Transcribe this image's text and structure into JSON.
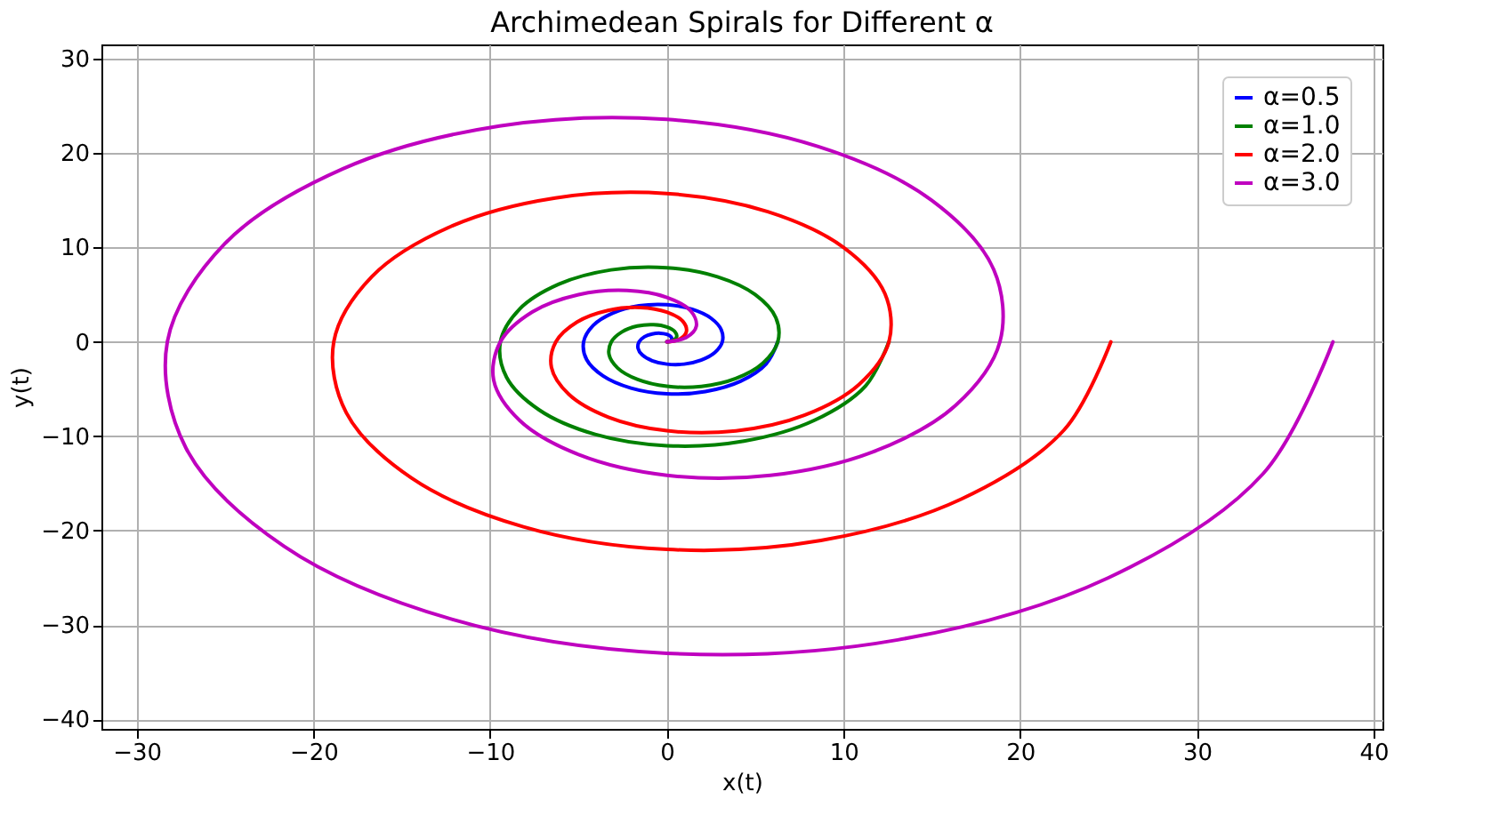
{
  "chart_data": {
    "type": "line",
    "title": "Archimedean Spirals for Different α",
    "xlabel": "x(t)",
    "ylabel": "y(t)",
    "xlim": [
      -32,
      40.5
    ],
    "ylim": [
      -41,
      31.5
    ],
    "xticks": [
      -30,
      -20,
      -10,
      0,
      10,
      20,
      30,
      40
    ],
    "yticks": [
      -40,
      -30,
      -20,
      -10,
      0,
      10,
      20,
      30
    ],
    "grid": true,
    "legend": "top right",
    "line_style": "solid",
    "marker": "none",
    "series": [
      {
        "name": "α=0.5",
        "color": "#0000ff",
        "x": [
          0,
          0.18,
          0.28,
          0.23,
          0,
          -0.38,
          -0.83,
          -1.27,
          -1.57,
          -1.63,
          -1.39,
          -0.83,
          0,
          0.98,
          1.94,
          2.72,
          3.14,
          3.08,
          2.5,
          1.43,
          0,
          -1.58,
          -3.05,
          -4.17,
          -4.71,
          -4.54,
          -3.61,
          -2.03,
          0,
          2.18,
          4.17,
          5.62,
          6.28
        ],
        "values": [
          0,
          0.08,
          0.28,
          0.54,
          0.79,
          0.91,
          0.83,
          0.53,
          0,
          -0.68,
          -1.39,
          -2.0,
          -2.36,
          -2.36,
          -1.94,
          -1.13,
          0,
          1.28,
          2.5,
          3.45,
          3.93,
          3.81,
          3.05,
          1.73,
          0,
          -1.88,
          -3.61,
          -4.9,
          -5.5,
          -5.26,
          -4.17,
          -2.33,
          0
        ]
      },
      {
        "name": "α=1.0",
        "color": "#008000",
        "x": [
          0,
          0.36,
          0.56,
          0.45,
          0,
          -0.75,
          -1.67,
          -2.54,
          -3.14,
          -3.27,
          -2.78,
          -1.65,
          0,
          1.95,
          3.89,
          5.44,
          6.28,
          6.17,
          5.0,
          2.86,
          0,
          -3.16,
          -6.11,
          -8.34,
          -9.42,
          -9.07,
          -7.22,
          -4.06,
          0,
          4.36,
          8.33,
          11.25,
          12.57
        ],
        "values": [
          0,
          0.15,
          0.56,
          1.09,
          1.57,
          1.81,
          1.67,
          1.05,
          0,
          -1.35,
          -2.78,
          -3.99,
          -4.71,
          -4.72,
          -3.89,
          -2.25,
          0,
          2.55,
          5.0,
          6.89,
          7.85,
          7.62,
          6.11,
          3.46,
          0,
          -3.76,
          -7.22,
          -9.8,
          -11.0,
          -10.52,
          -8.33,
          -4.66,
          0
        ]
      },
      {
        "name": "α=2.0",
        "color": "#ff0000",
        "x": [
          0,
          0.73,
          1.11,
          0.9,
          0,
          -1.5,
          -3.33,
          -5.08,
          -6.28,
          -6.53,
          -5.55,
          -3.31,
          0,
          3.91,
          7.78,
          10.88,
          12.57,
          12.34,
          10.0,
          5.71,
          0,
          -6.31,
          -12.22,
          -16.69,
          -18.85,
          -18.14,
          -14.44,
          -8.12,
          0,
          8.72,
          16.66,
          22.49,
          25.13
        ],
        "values": [
          0,
          0.3,
          1.11,
          2.18,
          3.14,
          3.63,
          3.33,
          2.1,
          0,
          -2.71,
          -5.55,
          -7.98,
          -9.42,
          -9.43,
          -7.78,
          -4.51,
          0,
          5.11,
          10.0,
          13.79,
          15.71,
          15.24,
          12.22,
          6.91,
          0,
          -7.51,
          -14.44,
          -19.59,
          -21.99,
          -21.04,
          -16.66,
          -9.32,
          0
        ]
      },
      {
        "name": "α=3.0",
        "color": "#bf00bf",
        "x": [
          0,
          1.09,
          1.67,
          1.35,
          0,
          -2.25,
          -5.0,
          -7.62,
          -9.42,
          -9.8,
          -8.33,
          -4.96,
          0,
          5.86,
          11.66,
          16.33,
          18.85,
          18.5,
          14.99,
          8.57,
          0,
          -9.47,
          -18.33,
          -25.03,
          -28.27,
          -27.21,
          -21.66,
          -12.17,
          0,
          13.07,
          24.99,
          33.74,
          37.7
        ],
        "values": [
          0,
          0.45,
          1.67,
          3.27,
          4.71,
          5.44,
          5.0,
          3.16,
          0,
          -4.06,
          -8.33,
          -11.97,
          -14.14,
          -14.15,
          -11.66,
          -6.76,
          0,
          7.66,
          14.99,
          20.68,
          23.56,
          22.86,
          18.33,
          10.37,
          0,
          -11.27,
          -21.66,
          -29.39,
          -32.99,
          -31.57,
          -24.99,
          -13.98,
          0
        ]
      }
    ]
  }
}
